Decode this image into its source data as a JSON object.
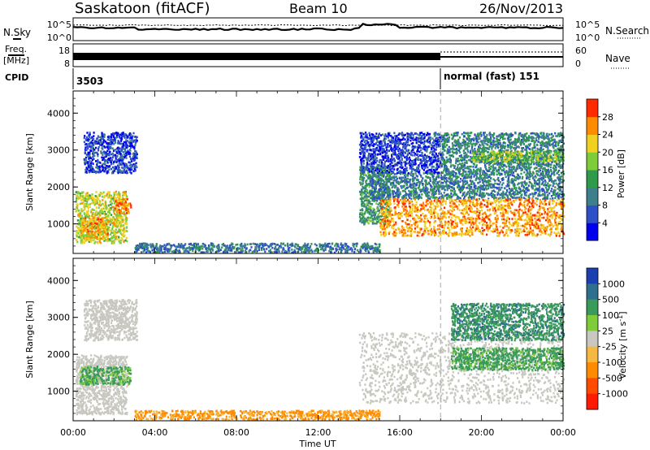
{
  "header": {
    "site": "Saskatoon (fitACF)",
    "beam": "Beam 10",
    "date": "26/Nov/2013"
  },
  "nsky_panel": {
    "left_label": "N.Sky",
    "right_label": "N.Search",
    "y_ticks": [
      "10^5",
      "10^0"
    ],
    "right_ticks": [
      "10^5",
      "10^0"
    ]
  },
  "freq_panel": {
    "left_label_1": "Freq.",
    "left_label_2": "[MHz]",
    "y_ticks": [
      "18",
      "8"
    ],
    "right_label": "Nave",
    "right_ticks": [
      "60",
      "0"
    ]
  },
  "cpid_panel": {
    "label": "CPID",
    "segments": [
      {
        "start_hour": 0,
        "text": "3503"
      },
      {
        "start_hour": 18,
        "text": "normal (fast) 151"
      }
    ]
  },
  "chart_data": [
    {
      "type": "heatmap",
      "panel": "power",
      "xlabel": "",
      "ylabel": "Slant Range [km]",
      "xlim": [
        0,
        24
      ],
      "ylim": [
        200,
        4600
      ],
      "y_ticks": [
        "1000",
        "2000",
        "3000",
        "4000"
      ],
      "colorbar": {
        "label": "Power [dB]",
        "ticks": [
          "4",
          "8",
          "12",
          "16",
          "20",
          "24",
          "28"
        ],
        "range": [
          0,
          32
        ],
        "colors": [
          "#0000ee",
          "#2e4fc8",
          "#3d7f8a",
          "#2e9a4a",
          "#7fcc3a",
          "#f0d020",
          "#ff8c00",
          "#ff2a00"
        ]
      },
      "regions": [
        {
          "hours": [
            0.1,
            2.6
          ],
          "range_km": [
            500,
            1900
          ],
          "level_db": 20
        },
        {
          "hours": [
            0.3,
            1.7
          ],
          "range_km": [
            600,
            1200
          ],
          "level_db": 24
        },
        {
          "hours": [
            2.0,
            2.8
          ],
          "range_km": [
            1300,
            1700
          ],
          "level_db": 27
        },
        {
          "hours": [
            0.5,
            3.1
          ],
          "range_km": [
            2400,
            3500
          ],
          "level_db": 5
        },
        {
          "hours": [
            3.0,
            15.0
          ],
          "range_km": [
            250,
            500
          ],
          "level_db": 9
        },
        {
          "hours": [
            14.0,
            15.5
          ],
          "range_km": [
            1000,
            2600
          ],
          "level_db": 13
        },
        {
          "hours": [
            14.5,
            24.0
          ],
          "range_km": [
            1700,
            2400
          ],
          "level_db": 10
        },
        {
          "hours": [
            15.0,
            24.0
          ],
          "range_km": [
            700,
            1700
          ],
          "level_db": 25
        },
        {
          "hours": [
            14.0,
            18.0
          ],
          "range_km": [
            2400,
            3500
          ],
          "level_db": 5
        },
        {
          "hours": [
            18.0,
            24.0
          ],
          "range_km": [
            2400,
            3500
          ],
          "level_db": 11
        },
        {
          "hours": [
            19.5,
            24.0
          ],
          "range_km": [
            2700,
            3000
          ],
          "level_db": 17
        }
      ]
    },
    {
      "type": "heatmap",
      "panel": "velocity",
      "xlabel": "Time UT",
      "ylabel": "Slant Range [km]",
      "xlim": [
        0,
        24
      ],
      "ylim": [
        200,
        4600
      ],
      "x_ticks": [
        "00:00",
        "04:00",
        "08:00",
        "12:00",
        "16:00",
        "20:00",
        "00:00"
      ],
      "y_ticks": [
        "1000",
        "2000",
        "3000",
        "4000"
      ],
      "colorbar": {
        "label": "Velocity [m s",
        "label_superscript": "-1",
        "label_close": "]",
        "ticks": [
          "1000",
          "500",
          "100",
          "25",
          "-25",
          "-100",
          "-500",
          "-1000"
        ],
        "colors": [
          "#1a3fb0",
          "#2e6e8e",
          "#3a9a5a",
          "#7fcc3a",
          "#c8c8c0",
          "#f5b840",
          "#ff8c00",
          "#ff4a00",
          "#ff1a00"
        ]
      },
      "regions": [
        {
          "hours": [
            0.1,
            2.6
          ],
          "range_km": [
            400,
            2000
          ],
          "velocity": 0
        },
        {
          "hours": [
            0.3,
            2.8
          ],
          "range_km": [
            1200,
            1700
          ],
          "velocity": 120
        },
        {
          "hours": [
            0.5,
            3.1
          ],
          "range_km": [
            2400,
            3500
          ],
          "velocity": 0
        },
        {
          "hours": [
            3.0,
            15.0
          ],
          "range_km": [
            250,
            500
          ],
          "velocity": -120
        },
        {
          "hours": [
            14.0,
            24.0
          ],
          "range_km": [
            700,
            2600
          ],
          "velocity": 0
        },
        {
          "hours": [
            18.5,
            24.0
          ],
          "range_km": [
            1600,
            2200
          ],
          "velocity": 150
        },
        {
          "hours": [
            18.5,
            24.0
          ],
          "range_km": [
            2400,
            3400
          ],
          "velocity": 400
        }
      ]
    }
  ],
  "marker": {
    "hour": 18
  }
}
